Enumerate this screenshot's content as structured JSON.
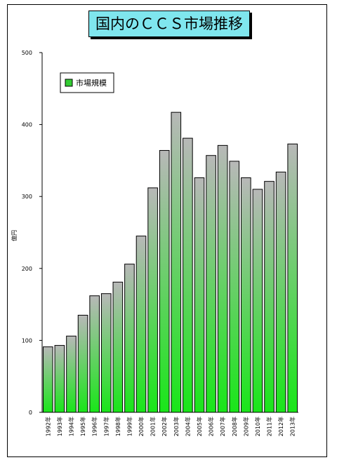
{
  "chart_data": {
    "type": "bar",
    "title": "国内のＣＣＳ市場推移",
    "ylabel": "億円",
    "xlabel": "",
    "ylim": [
      0,
      500
    ],
    "yticks": [
      0,
      100,
      200,
      300,
      400,
      500
    ],
    "legend": {
      "position": "top-left",
      "label": "市場規模"
    },
    "grid": false,
    "colors": {
      "bar_top": "#b8b8b8",
      "bar_bottom": "#19e619",
      "bar_edge": "#000000",
      "title_bg": "#7fe6ee",
      "legend_swatch": "#33cc33"
    },
    "categories": [
      "1992年",
      "1993年",
      "1994年",
      "1995年",
      "1996年",
      "1997年",
      "1998年",
      "1999年",
      "2000年",
      "2001年",
      "2002年",
      "2003年",
      "2004年",
      "2005年",
      "2006年",
      "2007年",
      "2008年",
      "2009年",
      "2010年",
      "2011年",
      "2012年",
      "2013年"
    ],
    "series": [
      {
        "name": "市場規模",
        "values": [
          91,
          93,
          106,
          135,
          162,
          165,
          181,
          206,
          245,
          312,
          364,
          417,
          381,
          326,
          357,
          371,
          349,
          326,
          310,
          321,
          334,
          373
        ]
      }
    ]
  }
}
